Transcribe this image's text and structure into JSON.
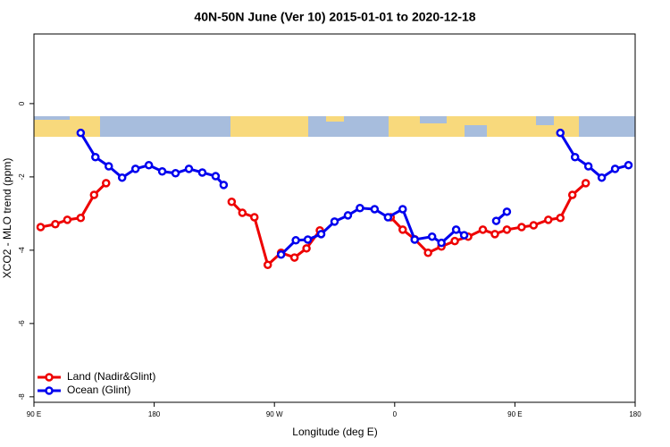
{
  "chart_data": {
    "type": "line",
    "title": "40N-50N June (Ver 10)   2015-01-01 to 2020-12-18",
    "x_label": "Longitude (deg E)",
    "y_label": "XCO2 - MLO trend (ppm)",
    "xlim": [
      90,
      540
    ],
    "ylim": [
      -8.15,
      1.9
    ],
    "xticks": [
      {
        "value": 90,
        "label": "90 E"
      },
      {
        "value": 180,
        "label": "180"
      },
      {
        "value": 270,
        "label": "90 W"
      },
      {
        "value": 360,
        "label": "0"
      },
      {
        "value": 450,
        "label": "90 E"
      },
      {
        "value": 540,
        "label": "180"
      }
    ],
    "yticks": [
      0,
      -2,
      -4,
      -6,
      -8
    ],
    "legend": "bottom-left",
    "series": [
      {
        "name": "Land (Nadir&Glint)",
        "color": "#ee0000",
        "x": [
          95,
          106,
          115,
          125,
          135,
          144,
          null,
          238,
          246,
          255,
          265,
          275,
          285,
          294,
          304,
          null,
          357,
          366,
          375,
          385,
          395,
          405,
          415,
          426,
          435,
          444,
          455,
          464,
          475,
          484,
          493,
          503
        ],
        "values": [
          -3.37,
          -3.29,
          -3.17,
          -3.12,
          -2.49,
          -2.17,
          null,
          -2.68,
          -2.98,
          -3.1,
          -4.4,
          -4.07,
          -4.2,
          -3.95,
          -3.46,
          null,
          -3.1,
          -3.44,
          -3.7,
          -4.07,
          -3.9,
          -3.75,
          -3.63,
          -3.44,
          -3.56,
          -3.44,
          -3.37,
          -3.32,
          -3.17,
          -3.12,
          -2.49,
          -2.17
        ]
      },
      {
        "name": "Ocean (Glint)",
        "color": "#0000ee",
        "x": [
          125,
          136,
          146,
          156,
          166,
          176,
          186,
          196,
          206,
          216,
          226,
          232,
          null,
          275,
          286,
          295,
          305,
          315,
          325,
          334,
          345,
          355,
          366,
          375,
          388,
          395,
          406,
          412,
          null,
          436,
          444,
          null,
          484,
          495,
          505,
          515,
          525,
          535
        ],
        "values": [
          -0.8,
          -1.46,
          -1.71,
          -2.02,
          -1.78,
          -1.68,
          -1.85,
          -1.9,
          -1.78,
          -1.88,
          -1.98,
          -2.22,
          null,
          -4.12,
          -3.73,
          -3.71,
          -3.56,
          -3.22,
          -3.05,
          -2.85,
          -2.88,
          -3.1,
          -2.88,
          -3.71,
          -3.63,
          -3.8,
          -3.44,
          -3.59,
          null,
          -3.2,
          -2.95,
          null,
          -0.8,
          -1.46,
          -1.71,
          -2.02,
          -1.78,
          -1.68
        ]
      }
    ]
  }
}
